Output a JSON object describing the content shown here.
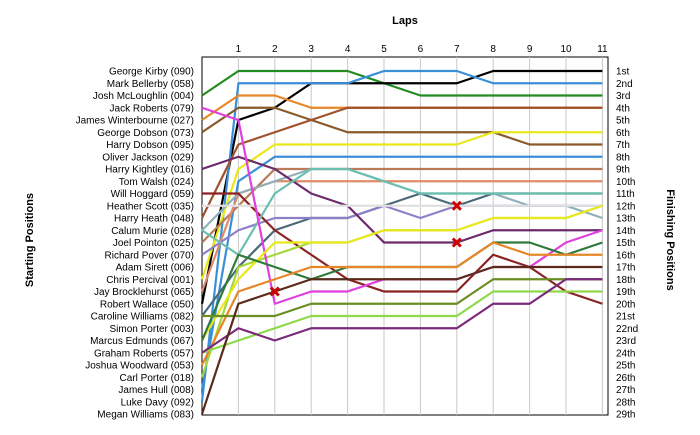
{
  "chart_data": {
    "type": "line",
    "title": "",
    "xlabel": "Laps",
    "ylabel_left": "Starting Positions",
    "ylabel_right": "Finishing Positions",
    "x": [
      0,
      1,
      2,
      3,
      4,
      5,
      6,
      7,
      8,
      9,
      10,
      11
    ],
    "x_tick_labels": [
      "1",
      "2",
      "3",
      "4",
      "5",
      "6",
      "7",
      "8",
      "9",
      "10",
      "11"
    ],
    "y_inverted": true,
    "ylim": [
      1,
      29
    ],
    "grid": "vertical",
    "drivers": [
      "George Kirby (090)",
      "Mark Bellerby (058)",
      "Josh McLoughlin (004)",
      "Jack Roberts (079)",
      "James Winterbourne (027)",
      "George Dobson (073)",
      "Harry Dobson (095)",
      "Oliver Jackson (029)",
      "Harry Kightley (016)",
      "Tom Walsh (024)",
      "Will Hoggard (059)",
      "Heather Scott (035)",
      "Harry Heath (048)",
      "Calum Murie (028)",
      "Joel Pointon (025)",
      "Richard Pover (070)",
      "Adam Sirett (006)",
      "Chris Percival (001)",
      "Jay Brocklehurst (065)",
      "Robert Wallace (050)",
      "Caroline Williams (082)",
      "Simon Porter (003)",
      "Marcus Edmunds (067)",
      "Graham Roberts (057)",
      "Joshua Woodward (053)",
      "Carl Porter (018)",
      "James Hull (008)",
      "Luke Davy (092)",
      "Megan Williams (083)"
    ],
    "finishing_labels": [
      "1st",
      "2nd",
      "3rd",
      "4th",
      "5th",
      "6th",
      "7th",
      "8th",
      "9th",
      "10th",
      "11th",
      "12th",
      "13th",
      "14th",
      "15th",
      "16th",
      "17th",
      "18th",
      "19th",
      "20th",
      "21st",
      "22nd",
      "23rd",
      "24th",
      "25th",
      "26th",
      "27th",
      "28th",
      "29th"
    ],
    "series": [
      {
        "color": "#228B22",
        "positions": [
          3,
          1,
          1,
          1,
          1,
          2,
          3,
          3,
          3,
          3,
          3,
          3
        ]
      },
      {
        "color": "#000000",
        "positions": [
          20,
          5,
          4,
          2,
          2,
          2,
          2,
          2,
          1,
          1,
          1,
          1
        ]
      },
      {
        "color": "#3A8FD8",
        "positions": [
          28,
          2,
          2,
          2,
          2,
          1,
          1,
          1,
          2,
          2,
          2,
          2
        ]
      },
      {
        "color": "#8B5A2B",
        "positions": [
          6,
          4,
          4,
          5,
          6,
          6,
          6,
          6,
          6,
          7,
          7,
          7
        ]
      },
      {
        "color": "#E8862A",
        "positions": [
          5,
          3,
          3,
          4,
          4,
          4,
          4,
          4,
          4,
          4,
          4,
          4
        ]
      },
      {
        "color": "#A0522D",
        "positions": [
          13,
          7,
          6,
          5,
          4,
          4,
          4,
          4,
          4,
          4,
          4,
          4
        ]
      },
      {
        "color": "#E8E81A",
        "positions": [
          18,
          9,
          7,
          7,
          7,
          7,
          7,
          7,
          6,
          6,
          6,
          6
        ]
      },
      {
        "color": "#3A8FD8",
        "positions": [
          27,
          10,
          8,
          8,
          8,
          8,
          8,
          8,
          8,
          8,
          8,
          8
        ]
      },
      {
        "color": "#B97A57",
        "positions": [
          15,
          12,
          9,
          9,
          9,
          9,
          9,
          9,
          9,
          9,
          9,
          9
        ]
      },
      {
        "color": "#E08A6A",
        "positions": [
          19,
          11,
          10,
          10,
          10,
          10,
          10,
          10,
          10,
          10,
          10,
          10
        ]
      },
      {
        "color": "#4A6A7A",
        "positions": [
          21,
          17,
          14,
          13,
          13,
          12,
          11,
          12,
          11,
          11,
          11,
          11
        ]
      },
      {
        "color": "#8FB0B8",
        "positions": [
          14,
          11,
          10,
          9,
          9,
          10,
          11,
          11,
          11,
          12,
          12,
          13
        ]
      },
      {
        "color": "#8F7FC8",
        "positions": [
          16,
          14,
          13,
          13,
          13,
          12,
          13,
          12,
          12,
          12,
          12,
          12
        ]
      },
      {
        "color": "#8B2323",
        "positions": [
          11,
          11,
          14,
          16,
          18,
          19,
          19,
          19,
          16,
          17,
          19,
          20
        ]
      },
      {
        "color": "#6B2A6B",
        "positions": [
          9,
          8,
          9,
          11,
          12,
          15,
          15,
          15,
          14,
          14,
          14,
          14
        ]
      },
      {
        "color": "#A4D83A",
        "positions": [
          26,
          17,
          16,
          15,
          15,
          14,
          14,
          14,
          13,
          13,
          13,
          12
        ]
      },
      {
        "color": "#E0E0E0",
        "positions": [
          12,
          12,
          12,
          12,
          12,
          12,
          12,
          12,
          12,
          12,
          12,
          12
        ]
      },
      {
        "color": "#6ABFB0",
        "positions": [
          14,
          16,
          11,
          9,
          9,
          10,
          11,
          11,
          11,
          11,
          11,
          11
        ]
      },
      {
        "color": "#E040E0",
        "positions": [
          4,
          5,
          20,
          19,
          19,
          18,
          18,
          18,
          17,
          17,
          15,
          14
        ]
      },
      {
        "color": "#E8E81A",
        "positions": [
          23,
          18,
          15,
          15,
          15,
          14,
          14,
          14,
          13,
          13,
          13,
          12
        ]
      },
      {
        "color": "#2F7A3A",
        "positions": [
          23,
          16,
          17,
          18,
          17,
          17,
          17,
          17,
          15,
          15,
          16,
          15
        ]
      },
      {
        "color": "#E8862A",
        "positions": [
          25,
          19,
          18,
          17,
          17,
          17,
          17,
          17,
          15,
          16,
          16,
          16
        ]
      },
      {
        "color": "#6B8E23",
        "positions": [
          21,
          21,
          21,
          20,
          20,
          20,
          20,
          20,
          18,
          18,
          18,
          18
        ]
      },
      {
        "color": "#8FD84A",
        "positions": [
          24,
          23,
          22,
          21,
          21,
          21,
          21,
          21,
          19,
          19,
          19,
          19
        ]
      },
      {
        "color": "#7B2A7B",
        "positions": [
          24,
          22,
          23,
          22,
          22,
          22,
          22,
          22,
          20,
          20,
          18,
          18
        ]
      },
      {
        "color": "#5A2A1A",
        "positions": [
          29,
          20,
          19,
          18,
          18,
          18,
          18,
          18,
          17,
          17,
          17,
          17
        ]
      }
    ],
    "incidents": [
      {
        "lap": 2,
        "position": 19
      },
      {
        "lap": 7,
        "position": 12
      },
      {
        "lap": 7,
        "position": 15
      }
    ]
  }
}
